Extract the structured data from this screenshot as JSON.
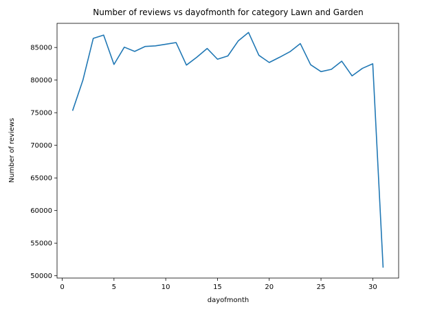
{
  "chart_data": {
    "type": "line",
    "title": "Number of reviews vs dayofmonth for category Lawn and Garden",
    "xlabel": "dayofmonth",
    "ylabel": "Number of reviews",
    "xlim": [
      -0.5,
      32.5
    ],
    "ylim": [
      49650,
      88700
    ],
    "xticks": [
      0,
      5,
      10,
      15,
      20,
      25,
      30
    ],
    "yticks": [
      50000,
      55000,
      60000,
      65000,
      70000,
      75000,
      80000,
      85000
    ],
    "grid": false,
    "series": [
      {
        "color": "#1f77b4",
        "x": [
          1,
          2,
          3,
          4,
          5,
          6,
          7,
          8,
          9,
          10,
          11,
          12,
          13,
          14,
          15,
          16,
          17,
          18,
          19,
          20,
          21,
          22,
          23,
          24,
          25,
          26,
          27,
          28,
          29,
          30,
          31
        ],
        "y": [
          75300,
          80000,
          86400,
          86900,
          82400,
          85050,
          84400,
          85150,
          85250,
          85500,
          85750,
          82300,
          83500,
          84850,
          83200,
          83700,
          86000,
          87300,
          83800,
          82700,
          83500,
          84350,
          85600,
          82350,
          81300,
          81650,
          82900,
          80650,
          81800,
          82500,
          51250
        ]
      }
    ]
  }
}
